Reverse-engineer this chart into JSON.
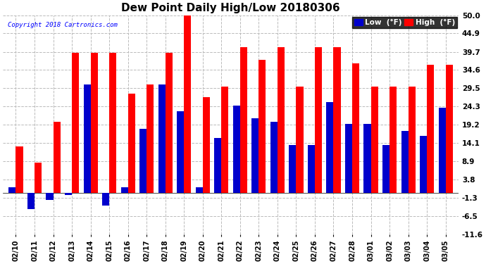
{
  "title": "Dew Point Daily High/Low 20180306",
  "copyright": "Copyright 2018 Cartronics.com",
  "dates": [
    "02/10",
    "02/11",
    "02/12",
    "02/13",
    "02/14",
    "02/15",
    "02/16",
    "02/17",
    "02/18",
    "02/19",
    "02/20",
    "02/21",
    "02/22",
    "02/23",
    "02/24",
    "02/25",
    "02/26",
    "02/27",
    "02/28",
    "03/01",
    "03/02",
    "03/03",
    "03/04",
    "03/05"
  ],
  "high": [
    13.0,
    8.5,
    20.0,
    39.5,
    39.5,
    39.5,
    28.0,
    30.5,
    39.5,
    50.0,
    27.0,
    30.0,
    41.0,
    37.5,
    41.0,
    30.0,
    41.0,
    41.0,
    36.5,
    30.0,
    30.0,
    30.0,
    36.0,
    36.0
  ],
  "low": [
    1.5,
    -4.5,
    -2.0,
    -0.5,
    30.5,
    -3.5,
    1.5,
    18.0,
    30.5,
    23.0,
    1.5,
    15.5,
    24.5,
    21.0,
    20.0,
    13.5,
    13.5,
    25.5,
    19.5,
    19.5,
    13.5,
    17.5,
    16.0,
    24.0
  ],
  "high_color": "#ff0000",
  "low_color": "#0000cc",
  "ylim_min": -11.6,
  "ylim_max": 50.0,
  "yticks": [
    50.0,
    44.9,
    39.7,
    34.6,
    29.5,
    24.3,
    19.2,
    14.1,
    8.9,
    3.8,
    -1.3,
    -6.5,
    -11.6
  ],
  "bg_color": "#ffffff",
  "grid_color": "#bbbbbb",
  "legend_low_label": "Low  (°F)",
  "legend_high_label": "High  (°F)",
  "bar_width": 0.38,
  "title_fontsize": 11,
  "tick_fontsize": 7.5,
  "xlabel_fontsize": 7
}
